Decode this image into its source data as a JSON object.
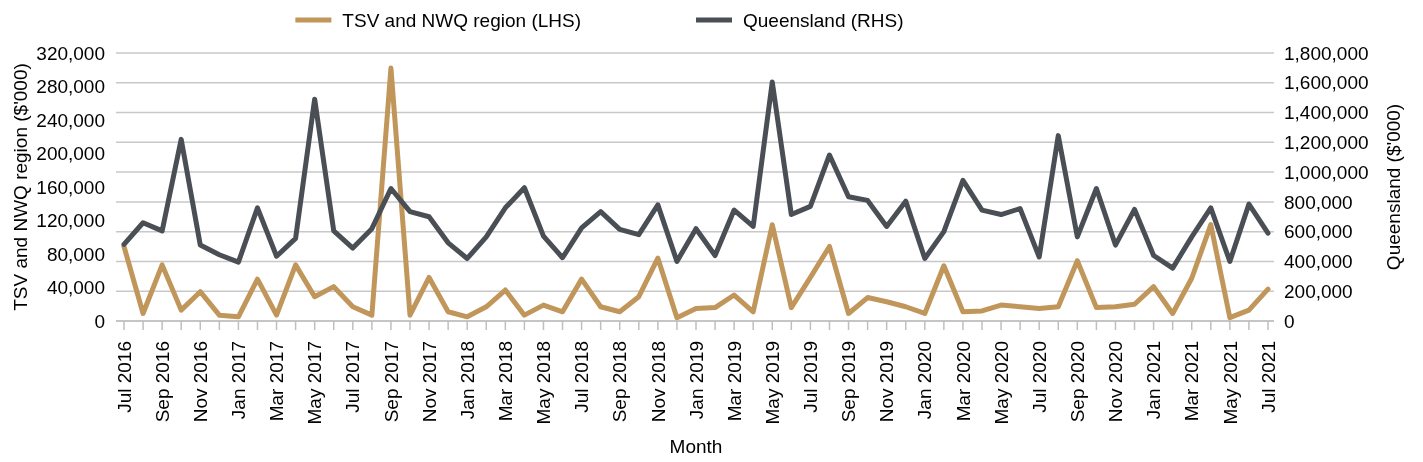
{
  "chart_data": {
    "type": "line",
    "xlabel": "Month",
    "ylabel": "TSV and NWQ region ($'000)",
    "y2label": "Queensland ($'000)",
    "categories": [
      "Jul 2016",
      null,
      "Sep 2016",
      null,
      "Nov 2016",
      null,
      "Jan 2017",
      null,
      "Mar 2017",
      null,
      "May 2017",
      null,
      "Jul 2017",
      null,
      "Sep 2017",
      null,
      "Nov 2017",
      null,
      "Jan 2018",
      null,
      "Mar 2018",
      null,
      "May 2018",
      null,
      "Jul 2018",
      null,
      "Sep 2018",
      null,
      "Nov 2018",
      null,
      "Jan 2019",
      null,
      "Mar 2019",
      null,
      "May 2019",
      null,
      "Jul 2019",
      null,
      "Sep 2019",
      null,
      "Nov 2019",
      null,
      "Jan 2020",
      null,
      "Mar 2020",
      null,
      "May 2020",
      null,
      "Jul 2020",
      null,
      "Sep 2020",
      null,
      "Nov 2020",
      null,
      "Jan 2021",
      null,
      "Mar 2021",
      null,
      "May 2021",
      null,
      "Jul 2021"
    ],
    "series": [
      {
        "name": "TSV and NWQ region (LHS)",
        "color": "#c0965a",
        "values": [
          89000,
          9000,
          67000,
          13000,
          35000,
          7000,
          5000,
          50000,
          7000,
          67000,
          29000,
          41000,
          17000,
          7000,
          302000,
          7000,
          52000,
          11000,
          5000,
          17000,
          37000,
          7000,
          19000,
          11000,
          50000,
          17000,
          11000,
          29000,
          75000,
          4000,
          15000,
          16000,
          31000,
          11000,
          115000,
          16000,
          52000,
          89000,
          9000,
          28000,
          23000,
          17000,
          9000,
          66000,
          11000,
          12000,
          19000,
          17000,
          15000,
          17000,
          72000,
          16000,
          17000,
          20000,
          41000,
          9000,
          51000,
          115000,
          4000,
          13000,
          38000
        ]
      },
      {
        "name": "Queensland (RHS)",
        "color": "#4a4f55",
        "axis": "y2",
        "values": [
          515000,
          660000,
          605000,
          1220000,
          510000,
          445000,
          395000,
          760000,
          435000,
          555000,
          1490000,
          605000,
          490000,
          620000,
          890000,
          735000,
          700000,
          525000,
          420000,
          565000,
          760000,
          895000,
          570000,
          425000,
          625000,
          735000,
          615000,
          580000,
          780000,
          400000,
          620000,
          440000,
          745000,
          635000,
          1605000,
          715000,
          770000,
          1115000,
          835000,
          810000,
          635000,
          805000,
          420000,
          600000,
          945000,
          745000,
          715000,
          755000,
          430000,
          1245000,
          565000,
          890000,
          510000,
          750000,
          440000,
          355000,
          565000,
          760000,
          400000,
          785000,
          590000
        ]
      }
    ],
    "ylim": [
      0,
      320000
    ],
    "yticks": [
      0,
      {
        "value": 40000,
        "label": "40,000"
      },
      {
        "value": 80000,
        "label": "80,000"
      },
      {
        "value": 120000,
        "label": "120,000"
      },
      {
        "value": 160000,
        "label": "160,000"
      },
      {
        "value": 200000,
        "label": "200,000"
      },
      {
        "value": 240000,
        "label": "240,000"
      },
      {
        "value": 280000,
        "label": "280,000"
      },
      {
        "value": 320000,
        "label": "320,000"
      }
    ],
    "y2lim": [
      0,
      1800000
    ],
    "y2ticks": [
      0,
      {
        "value": 200000,
        "label": "200,000"
      },
      {
        "value": 400000,
        "label": "400,000"
      },
      {
        "value": 600000,
        "label": "600,000"
      },
      {
        "value": 800000,
        "label": "800,000"
      },
      {
        "value": 1000000,
        "label": "1,000,000"
      },
      {
        "value": 1200000,
        "label": "1,200,000"
      },
      {
        "value": 1400000,
        "label": "1,400,000"
      },
      {
        "value": 1600000,
        "label": "1,600,000"
      },
      {
        "value": 1800000,
        "label": "1,800,000"
      }
    ],
    "grid": "y2",
    "legend": "top",
    "marker": "none",
    "line_style": "solid"
  }
}
